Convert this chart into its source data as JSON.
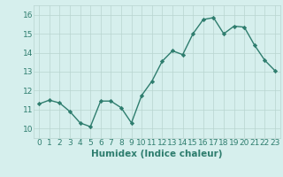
{
  "x": [
    0,
    1,
    2,
    3,
    4,
    5,
    6,
    7,
    8,
    9,
    10,
    11,
    12,
    13,
    14,
    15,
    16,
    17,
    18,
    19,
    20,
    21,
    22,
    23
  ],
  "y": [
    11.3,
    11.5,
    11.35,
    10.9,
    10.3,
    10.1,
    11.45,
    11.45,
    11.1,
    10.3,
    11.75,
    12.5,
    13.55,
    14.1,
    13.9,
    15.0,
    15.75,
    15.85,
    15.0,
    15.4,
    15.35,
    14.4,
    13.6,
    13.05
  ],
  "line_color": "#2e7d6e",
  "marker": "D",
  "marker_size": 2.2,
  "line_width": 1.0,
  "bg_color": "#d6efed",
  "grid_color": "#b8d4d0",
  "xlabel": "Humidex (Indice chaleur)",
  "xlabel_fontsize": 7.5,
  "tick_fontsize": 6.5,
  "ylim": [
    9.5,
    16.5
  ],
  "xlim": [
    -0.5,
    23.5
  ],
  "yticks": [
    10,
    11,
    12,
    13,
    14,
    15,
    16
  ],
  "xticks": [
    0,
    1,
    2,
    3,
    4,
    5,
    6,
    7,
    8,
    9,
    10,
    11,
    12,
    13,
    14,
    15,
    16,
    17,
    18,
    19,
    20,
    21,
    22,
    23
  ]
}
